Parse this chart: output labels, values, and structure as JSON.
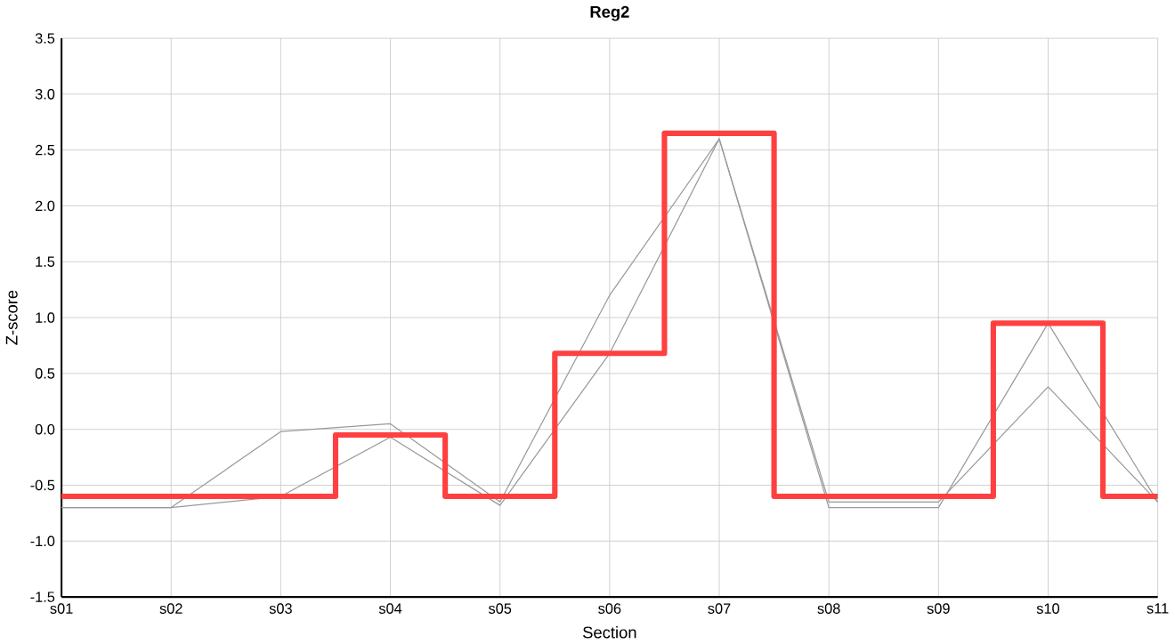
{
  "chart_data": {
    "type": "line",
    "title": "Reg2",
    "xlabel": "Section",
    "ylabel": "Z-score",
    "categories": [
      "s01",
      "s02",
      "s03",
      "s04",
      "s05",
      "s06",
      "s07",
      "s08",
      "s09",
      "s10",
      "s11"
    ],
    "series": [
      {
        "color": "#999999",
        "values": [
          -0.7,
          -0.7,
          -0.02,
          0.05,
          -0.65,
          1.2,
          2.6,
          -0.7,
          -0.7,
          0.95,
          -0.65
        ]
      },
      {
        "color": "#999999",
        "values": [
          -0.7,
          -0.7,
          -0.6,
          -0.07,
          -0.68,
          0.68,
          2.6,
          -0.65,
          -0.65,
          0.38,
          -0.65
        ]
      },
      {
        "type": "step",
        "color": "#ff4040",
        "values": [
          -0.6,
          -0.6,
          -0.6,
          -0.05,
          -0.6,
          0.68,
          2.65,
          -0.6,
          -0.6,
          0.95,
          -0.6
        ]
      }
    ],
    "ylim": [
      -1.5,
      3.5
    ],
    "yticks": [
      {
        "value": -1.5,
        "label": "-1.5"
      },
      {
        "value": -1.0,
        "label": "-1.0"
      },
      {
        "value": -0.5,
        "label": "-0.5"
      },
      {
        "value": 0,
        "label": "0.0"
      },
      {
        "value": 0.5,
        "label": "0.5"
      },
      {
        "value": 1.0,
        "label": "1.0"
      },
      {
        "value": 1.5,
        "label": "1.5"
      },
      {
        "value": 2.0,
        "label": "2.0"
      },
      {
        "value": 2.5,
        "label": "2.5"
      },
      {
        "value": 3.0,
        "label": "3.0"
      },
      {
        "value": 3.5,
        "label": "3.5"
      }
    ],
    "grid": true,
    "marker": "none",
    "line_style": "solid"
  }
}
